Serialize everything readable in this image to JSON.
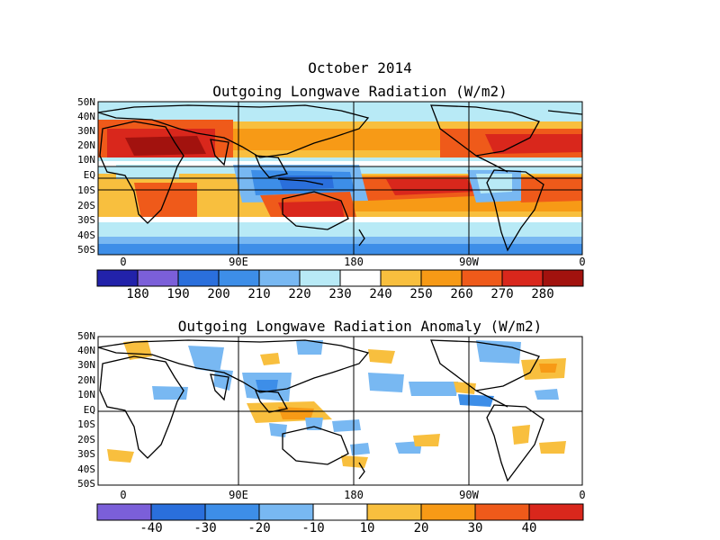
{
  "header": {
    "month": "October 2014"
  },
  "panel1": {
    "title": "Outgoing Longwave Radiation (W/m2)",
    "lat_labels": [
      "50N",
      "40N",
      "30N",
      "20N",
      "10N",
      "EQ",
      "10S",
      "20S",
      "30S",
      "40S",
      "50S"
    ],
    "lon_labels": [
      "0",
      "90E",
      "180",
      "90W",
      "0"
    ],
    "colorbar": {
      "labels": [
        "180",
        "190",
        "200",
        "210",
        "220",
        "230",
        "240",
        "250",
        "260",
        "270",
        "280"
      ],
      "colors": [
        "#2222aa",
        "#7b5fd9",
        "#2a6fdc",
        "#3d8ee8",
        "#78b8f2",
        "#b8eaf6",
        "#ffffff",
        "#f8bf3e",
        "#f79a16",
        "#ef5a1a",
        "#d9271c",
        "#a2120e"
      ]
    }
  },
  "panel2": {
    "title": "Outgoing Longwave Radiation Anomaly (W/m2)",
    "lat_labels": [
      "50N",
      "40N",
      "30N",
      "20N",
      "10N",
      "EQ",
      "10S",
      "20S",
      "30S",
      "40S",
      "50S"
    ],
    "lon_labels": [
      "0",
      "90E",
      "180",
      "90W",
      "0"
    ],
    "colorbar": {
      "labels": [
        "-40",
        "-30",
        "-20",
        "-10",
        "10",
        "20",
        "30",
        "40"
      ],
      "colors": [
        "#7b5fd9",
        "#2a6fdc",
        "#3d8ee8",
        "#78b8f2",
        "#ffffff",
        "#f8bf3e",
        "#f79a16",
        "#ef5a1a",
        "#d9271c"
      ]
    }
  }
}
